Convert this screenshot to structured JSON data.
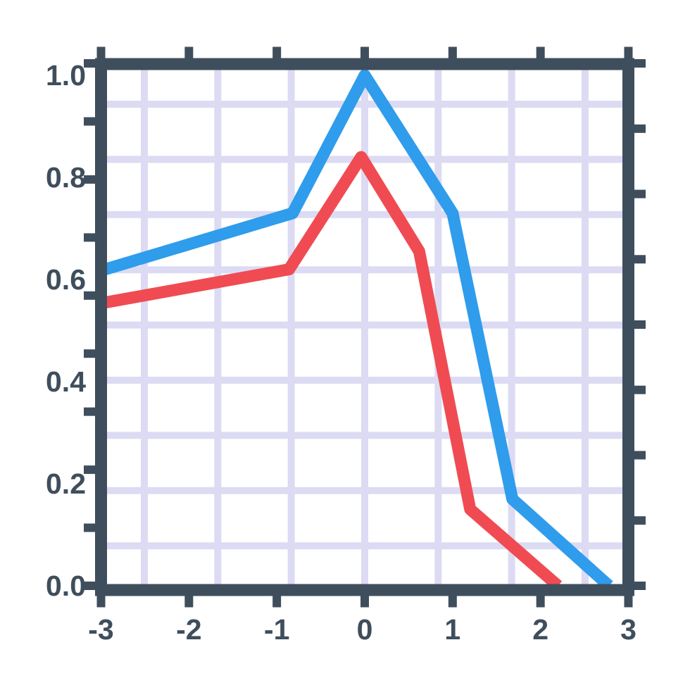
{
  "page": {
    "background_color": "#ffffff"
  },
  "chart": {
    "frame_color": "#3f4e5c",
    "grid_color": "#dcdbf3",
    "label_color": "#3f4e5c",
    "blue_series_color": "#2f9cec",
    "red_series_color": "#f04b52"
  },
  "chart_data": {
    "type": "line",
    "title": "",
    "xlabel": "",
    "ylabel": "",
    "xlim": [
      -3,
      3
    ],
    "ylim": [
      0.0,
      1.0
    ],
    "grid": true,
    "legend_position": "none",
    "x_ticks": {
      "values": [
        -3,
        -2,
        -1,
        0,
        1,
        2,
        3
      ],
      "labels": [
        "-3",
        "-2",
        "-1",
        "0",
        "1",
        "2",
        "3"
      ]
    },
    "y_ticks": {
      "values": [
        1.0,
        0.8,
        0.6,
        0.4,
        0.2,
        0.0
      ],
      "labels": [
        "1.0",
        "0.8",
        "0.6",
        "0.4",
        "0.2",
        "0.0"
      ]
    },
    "series": [
      {
        "name": "blue-line",
        "color": "#2f9cec",
        "points": [
          [
            -2.95,
            0.62
          ],
          [
            -0.82,
            0.73
          ],
          [
            0.0,
            1.0
          ],
          [
            1.0,
            0.73
          ],
          [
            1.68,
            0.17
          ],
          [
            2.78,
            0.0
          ]
        ]
      },
      {
        "name": "red-line",
        "color": "#f04b52",
        "points": [
          [
            -2.95,
            0.555
          ],
          [
            -0.86,
            0.62
          ],
          [
            -0.04,
            0.84
          ],
          [
            0.62,
            0.655
          ],
          [
            1.2,
            0.15
          ],
          [
            2.2,
            0.0
          ]
        ]
      }
    ]
  }
}
